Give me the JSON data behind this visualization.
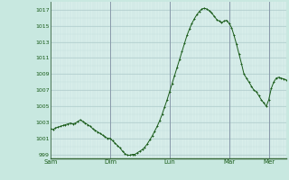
{
  "bg_color": "#c8e8e0",
  "plot_bg_color": "#d8eeea",
  "line_color": "#1a5c1a",
  "marker_color": "#1a5c1a",
  "grid_color_major": "#b0cccc",
  "grid_color_minor": "#c0dcdc",
  "vline_color": "#8899aa",
  "ylabel_color": "#1a5c1a",
  "ylim": [
    998.5,
    1018.0
  ],
  "yticks": [
    999,
    1001,
    1003,
    1005,
    1007,
    1009,
    1011,
    1013,
    1015,
    1017
  ],
  "xtick_labels": [
    "Sam",
    "Dim",
    "Lun",
    "Mar",
    "Mer",
    ""
  ],
  "xtick_positions": [
    0,
    24,
    48,
    72,
    88,
    95
  ],
  "x_total": 96,
  "pressure_data": [
    1002.2,
    1002.1,
    1002.3,
    1002.4,
    1002.5,
    1002.6,
    1002.7,
    1002.8,
    1002.9,
    1002.8,
    1002.9,
    1003.1,
    1003.3,
    1003.1,
    1002.9,
    1002.7,
    1002.5,
    1002.2,
    1002.0,
    1001.8,
    1001.6,
    1001.4,
    1001.2,
    1001.0,
    1001.0,
    1000.7,
    1000.4,
    1000.1,
    999.8,
    999.4,
    999.1,
    998.9,
    998.9,
    999.0,
    999.0,
    999.2,
    999.4,
    999.6,
    999.9,
    1000.3,
    1000.8,
    1001.3,
    1001.9,
    1002.5,
    1003.2,
    1004.0,
    1004.9,
    1005.8,
    1006.8,
    1007.8,
    1008.8,
    1009.8,
    1010.8,
    1011.8,
    1012.8,
    1013.8,
    1014.6,
    1015.3,
    1015.9,
    1016.4,
    1016.8,
    1017.1,
    1017.2,
    1017.1,
    1016.9,
    1016.6,
    1016.2,
    1015.8,
    1015.6,
    1015.4,
    1015.6,
    1015.7,
    1015.3,
    1014.8,
    1013.8,
    1012.7,
    1011.5,
    1010.3,
    1009.0,
    1008.5,
    1008.0,
    1007.5,
    1007.0,
    1006.8,
    1006.3,
    1005.8,
    1005.4,
    1005.0,
    1005.8,
    1007.2,
    1008.0,
    1008.5,
    1008.6,
    1008.5,
    1008.4,
    1008.3
  ]
}
